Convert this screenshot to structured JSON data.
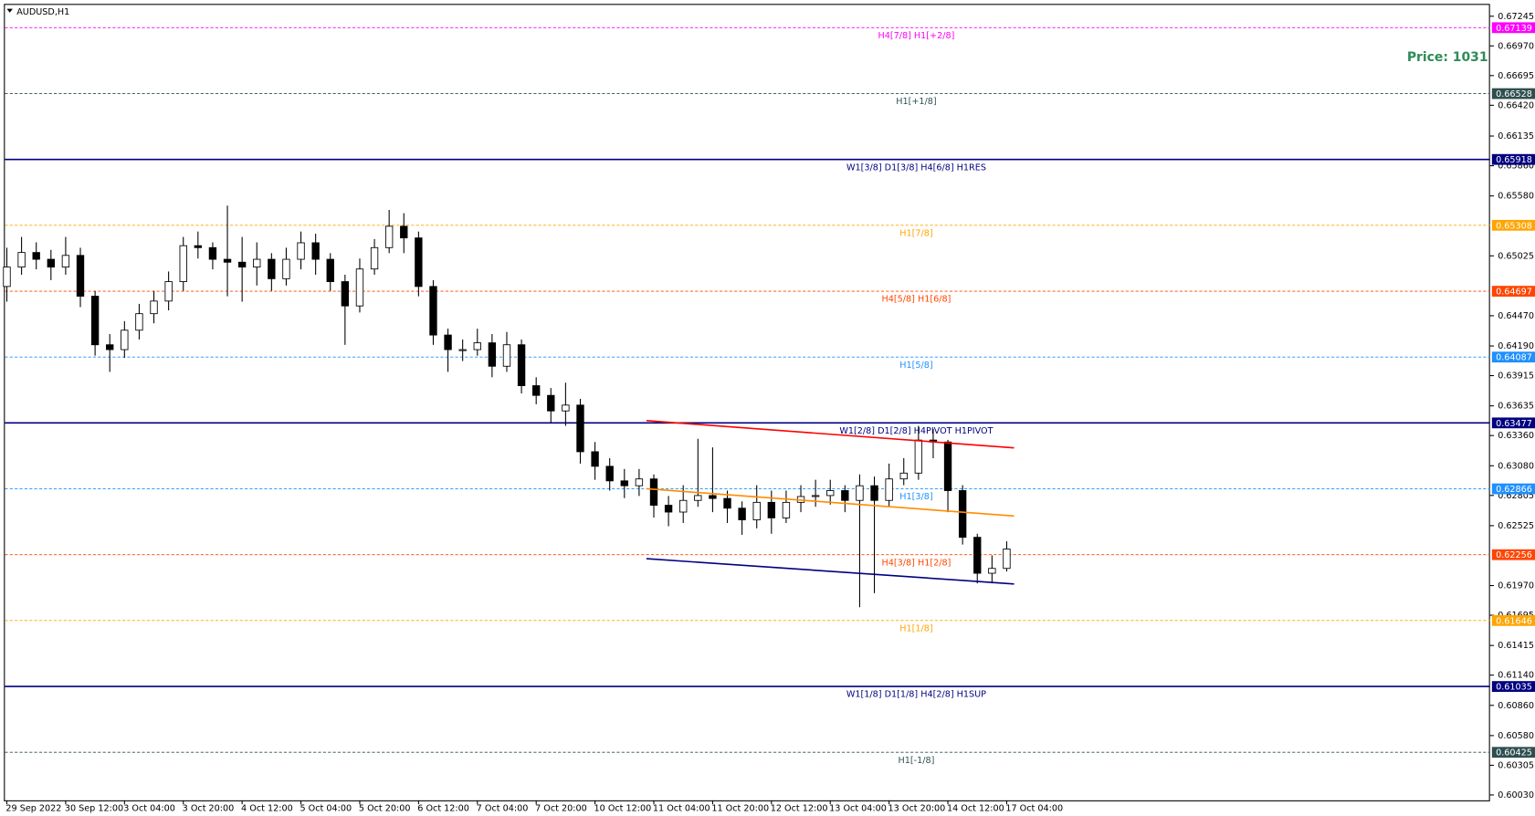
{
  "chart_data": {
    "type": "candlestick",
    "title": "AUDUSD,H1",
    "price_text": "Price: 1031",
    "x": [
      0,
      4,
      8,
      12,
      16,
      20,
      24,
      28,
      32,
      36,
      40,
      44,
      48,
      52,
      56,
      60,
      64,
      68,
      72,
      76,
      80,
      84,
      88,
      92,
      96,
      100,
      104,
      108,
      112,
      116,
      120,
      124,
      128,
      132,
      136,
      140,
      144,
      148,
      152,
      156,
      160,
      164,
      168,
      172,
      176,
      180,
      184,
      188,
      192,
      196,
      200,
      204,
      208,
      212,
      216,
      220,
      224,
      228,
      232,
      236,
      240,
      244,
      248,
      252,
      256,
      260,
      264,
      268,
      272
    ],
    "open": [
      0.64741,
      0.64921,
      0.65056,
      0.64993,
      0.64921,
      0.65029,
      0.64651,
      0.64201,
      0.64156,
      0.64336,
      0.64489,
      0.64606,
      0.64786,
      0.65119,
      0.65101,
      0.64993,
      0.64966,
      0.64921,
      0.64993,
      0.64813,
      0.64993,
      0.65146,
      0.64993,
      0.64786,
      0.64561,
      0.64903,
      0.65101,
      0.65299,
      0.65191,
      0.64741,
      0.64291,
      0.64156,
      0.64156,
      0.64219,
      0.64002,
      0.64201,
      0.63822,
      0.63732,
      0.63588,
      0.63642,
      0.6321,
      0.63075,
      0.6294,
      0.62895,
      0.62958,
      0.62714,
      0.62651,
      0.62759,
      0.62804,
      0.62777,
      0.62687,
      0.62579,
      0.62741,
      0.62597,
      0.62741,
      0.62795,
      0.62804,
      0.6285,
      0.62759,
      0.62895,
      0.62759,
      0.62958,
      0.63012,
      0.63318,
      0.633,
      0.6285,
      0.62417,
      0.62084,
      0.62129
    ],
    "high": [
      0.651,
      0.652,
      0.6515,
      0.6508,
      0.652,
      0.651,
      0.647,
      0.643,
      0.6442,
      0.6458,
      0.647,
      0.6488,
      0.652,
      0.6525,
      0.6515,
      0.6549,
      0.652,
      0.6515,
      0.6505,
      0.651,
      0.6525,
      0.6523,
      0.6505,
      0.6485,
      0.65,
      0.6518,
      0.6545,
      0.6542,
      0.6525,
      0.648,
      0.6435,
      0.6425,
      0.6435,
      0.643,
      0.6432,
      0.6425,
      0.639,
      0.638,
      0.6385,
      0.637,
      0.633,
      0.6315,
      0.6305,
      0.6305,
      0.63,
      0.628,
      0.629,
      0.6333,
      0.6325,
      0.6285,
      0.6275,
      0.629,
      0.6285,
      0.6285,
      0.629,
      0.6295,
      0.6295,
      0.629,
      0.63,
      0.6298,
      0.631,
      0.6315,
      0.6345,
      0.6342,
      0.6332,
      0.629,
      0.6245,
      0.6225,
      0.6238
    ],
    "low": [
      0.646,
      0.6485,
      0.649,
      0.648,
      0.6485,
      0.6455,
      0.641,
      0.6395,
      0.6408,
      0.6425,
      0.644,
      0.6452,
      0.647,
      0.65,
      0.649,
      0.6465,
      0.646,
      0.6475,
      0.647,
      0.6475,
      0.649,
      0.6485,
      0.647,
      0.642,
      0.645,
      0.6485,
      0.6505,
      0.6505,
      0.6465,
      0.642,
      0.6395,
      0.6405,
      0.641,
      0.639,
      0.6395,
      0.6375,
      0.6365,
      0.6348,
      0.6345,
      0.631,
      0.6295,
      0.6285,
      0.6278,
      0.628,
      0.626,
      0.6252,
      0.6255,
      0.627,
      0.6265,
      0.6255,
      0.6244,
      0.625,
      0.6245,
      0.6255,
      0.6265,
      0.627,
      0.6272,
      0.6265,
      0.61769,
      0.619,
      0.627,
      0.629,
      0.6295,
      0.6315,
      0.6265,
      0.6235,
      0.6199,
      0.6199,
      0.621
    ],
    "close": [
      0.64921,
      0.65056,
      0.64993,
      0.64921,
      0.65029,
      0.64651,
      0.64201,
      0.64156,
      0.64336,
      0.64489,
      0.64606,
      0.64786,
      0.65119,
      0.65101,
      0.64993,
      0.64966,
      0.64921,
      0.64993,
      0.64813,
      0.64993,
      0.65146,
      0.64993,
      0.64786,
      0.64561,
      0.64903,
      0.65101,
      0.65299,
      0.65191,
      0.64741,
      0.64291,
      0.64156,
      0.64156,
      0.64219,
      0.64002,
      0.64201,
      0.63822,
      0.63732,
      0.63588,
      0.63642,
      0.6321,
      0.63075,
      0.6294,
      0.62895,
      0.62958,
      0.62714,
      0.62651,
      0.62759,
      0.62804,
      0.62777,
      0.62687,
      0.62579,
      0.62741,
      0.62597,
      0.62741,
      0.62795,
      0.62804,
      0.6285,
      0.62759,
      0.62895,
      0.62759,
      0.62958,
      0.63012,
      0.63318,
      0.633,
      0.6285,
      0.62417,
      0.62084,
      0.62129,
      0.62309
    ],
    "up_color": "#ffffff",
    "down_color": "#000000",
    "xlim": [
      0,
      404
    ],
    "ylim": [
      0.5998,
      0.6735
    ],
    "xticks": [
      {
        "value": 0,
        "label": "29 Sep 2022"
      },
      {
        "value": 16,
        "label": "30 Sep 12:00"
      },
      {
        "value": 32,
        "label": "3 Oct 04:00"
      },
      {
        "value": 48,
        "label": "3 Oct 20:00"
      },
      {
        "value": 64,
        "label": "4 Oct 12:00"
      },
      {
        "value": 80,
        "label": "5 Oct 04:00"
      },
      {
        "value": 96,
        "label": "5 Oct 20:00"
      },
      {
        "value": 112,
        "label": "6 Oct 12:00"
      },
      {
        "value": 128,
        "label": "7 Oct 04:00"
      },
      {
        "value": 144,
        "label": "7 Oct 20:00"
      },
      {
        "value": 160,
        "label": "10 Oct 12:00"
      },
      {
        "value": 176,
        "label": "11 Oct 04:00"
      },
      {
        "value": 192,
        "label": "11 Oct 20:00"
      },
      {
        "value": 208,
        "label": "12 Oct 12:00"
      },
      {
        "value": 224,
        "label": "13 Oct 04:00"
      },
      {
        "value": 240,
        "label": "13 Oct 20:00"
      },
      {
        "value": 256,
        "label": "14 Oct 12:00"
      },
      {
        "value": 272,
        "label": "17 Oct 04:00"
      }
    ],
    "yticks": [
      0.67245,
      {
        "value": 0.6697,
        "label": "0.66970"
      },
      0.66695,
      {
        "value": 0.6642,
        "label": "0.66420"
      },
      0.66135,
      {
        "value": 0.6586,
        "label": "0.65860"
      },
      {
        "value": 0.6558,
        "label": "0.65580"
      },
      0.65025,
      {
        "value": 0.6447,
        "label": "0.64470"
      },
      {
        "value": 0.6419,
        "label": "0.64190"
      },
      0.63915,
      0.63635,
      {
        "value": 0.6336,
        "label": "0.63360"
      },
      {
        "value": 0.6308,
        "label": "0.63080"
      },
      0.62805,
      0.62525,
      {
        "value": 0.6197,
        "label": "0.61970"
      },
      0.61695,
      0.61415,
      {
        "value": 0.6114,
        "label": "0.61140"
      },
      {
        "value": 0.6086,
        "label": "0.60860"
      },
      {
        "value": 0.6058,
        "label": "0.60580"
      },
      0.60305,
      {
        "value": 0.6003,
        "label": "0.60030"
      }
    ],
    "levels": [
      {
        "price": 0.67139,
        "label": "H4[7/8] H1[+2/8]",
        "color": "#ff00ff",
        "style": "dashed"
      },
      {
        "price": 0.66528,
        "label": "H1[+1/8]",
        "color": "#2f4f4f",
        "style": "dashed"
      },
      {
        "price": 0.65918,
        "label": "W1[3/8] D1[3/8] H4[6/8] H1RES",
        "color": "#000080",
        "style": "solid"
      },
      {
        "price": 0.65308,
        "label": "H1[7/8]",
        "color": "#ffa500",
        "style": "dashed"
      },
      {
        "price": 0.64697,
        "label": "H4[5/8] H1[6/8]",
        "color": "#ff4500",
        "style": "dashed"
      },
      {
        "price": 0.64087,
        "label": "H1[5/8]",
        "color": "#1e90ff",
        "style": "dashed"
      },
      {
        "price": 0.63477,
        "label": "W1[2/8] D1[2/8] H4PIVOT H1PIVOT",
        "color": "#000080",
        "style": "solid"
      },
      {
        "price": 0.62866,
        "label": "H1[3/8]",
        "color": "#1e90ff",
        "style": "dashed"
      },
      {
        "price": 0.62256,
        "label": "H4[3/8] H1[2/8]",
        "color": "#ff4500",
        "style": "dashed"
      },
      {
        "price": 0.61646,
        "label": "H1[1/8]",
        "color": "#ffa500",
        "style": "dashed"
      },
      {
        "price": 0.61035,
        "label": "W1[1/8] D1[1/8] H4[2/8] H1SUP",
        "color": "#000080",
        "style": "solid"
      },
      {
        "price": 0.60425,
        "label": "H1[-1/8]",
        "color": "#2f4f4f",
        "style": "dashed"
      }
    ],
    "trendlines": [
      {
        "color": "#ff0000",
        "x": [
          174,
          274
        ],
        "y": [
          0.63498,
          0.63246
        ]
      },
      {
        "color": "#ff8c00",
        "x": [
          174,
          274
        ],
        "y": [
          0.62867,
          0.62615
        ]
      },
      {
        "color": "#000080",
        "x": [
          174,
          274
        ],
        "y": [
          0.62219,
          0.61985
        ]
      }
    ]
  }
}
